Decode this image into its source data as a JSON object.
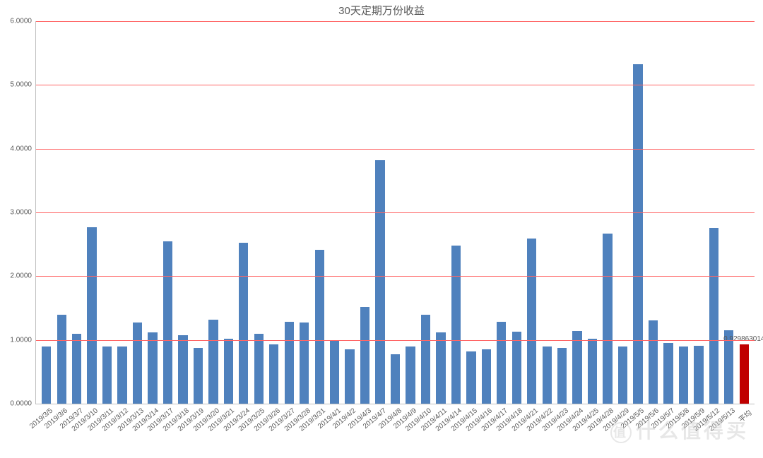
{
  "chart": {
    "type": "bar",
    "title": "30天定期万份收益",
    "title_fontsize": 15,
    "title_color": "#595959",
    "background_color": "#ffffff",
    "plot_background": "#ffffff",
    "grid_color": "#ff6666",
    "axis_color": "#bfbfbf",
    "tick_font_color": "#595959",
    "tick_fontsize": 10,
    "xlabel_fontsize": 10,
    "ylim": [
      0,
      6
    ],
    "yticks": [
      0,
      1,
      2,
      3,
      4,
      5,
      6
    ],
    "ytick_format": "0.0000",
    "bar_width_ratio": 0.62,
    "default_bar_color": "#4f81bd",
    "highlight_bar_color": "#c00000",
    "categories": [
      "2019/3/5",
      "2019/3/6",
      "2019/3/7",
      "2019/3/10",
      "2019/3/11",
      "2019/3/12",
      "2019/3/13",
      "2019/3/14",
      "2019/3/17",
      "2019/3/18",
      "2019/3/19",
      "2019/3/20",
      "2019/3/21",
      "2019/3/24",
      "2019/3/25",
      "2019/3/26",
      "2019/3/27",
      "2019/3/28",
      "2019/3/31",
      "2019/4/1",
      "2019/4/2",
      "2019/4/3",
      "2019/4/7",
      "2019/4/8",
      "2019/4/9",
      "2019/4/10",
      "2019/4/11",
      "2019/4/14",
      "2019/4/15",
      "2019/4/16",
      "2019/4/17",
      "2019/4/18",
      "2019/4/21",
      "2019/4/22",
      "2019/4/23",
      "2019/4/24",
      "2019/4/25",
      "2019/4/28",
      "2019/4/29",
      "2019/5/5",
      "2019/5/6",
      "2019/5/7",
      "2019/5/8",
      "2019/5/9",
      "2019/5/12",
      "2019/5/13",
      "平均"
    ],
    "values": [
      0.9,
      1.4,
      1.1,
      2.77,
      0.9,
      0.9,
      1.27,
      1.12,
      2.55,
      1.07,
      0.87,
      1.32,
      1.02,
      2.52,
      1.1,
      0.93,
      1.28,
      1.27,
      2.41,
      0.98,
      0.85,
      1.52,
      3.82,
      0.77,
      0.9,
      1.4,
      1.12,
      2.48,
      0.82,
      0.85,
      1.28,
      1.13,
      2.59,
      0.9,
      0.88,
      1.14,
      1.02,
      2.67,
      0.9,
      5.32,
      1.31,
      0.95,
      0.9,
      0.91,
      2.76,
      1.15,
      0.929863014
    ],
    "bar_colors": [
      "#4f81bd",
      "#4f81bd",
      "#4f81bd",
      "#4f81bd",
      "#4f81bd",
      "#4f81bd",
      "#4f81bd",
      "#4f81bd",
      "#4f81bd",
      "#4f81bd",
      "#4f81bd",
      "#4f81bd",
      "#4f81bd",
      "#4f81bd",
      "#4f81bd",
      "#4f81bd",
      "#4f81bd",
      "#4f81bd",
      "#4f81bd",
      "#4f81bd",
      "#4f81bd",
      "#4f81bd",
      "#4f81bd",
      "#4f81bd",
      "#4f81bd",
      "#4f81bd",
      "#4f81bd",
      "#4f81bd",
      "#4f81bd",
      "#4f81bd",
      "#4f81bd",
      "#4f81bd",
      "#4f81bd",
      "#4f81bd",
      "#4f81bd",
      "#4f81bd",
      "#4f81bd",
      "#4f81bd",
      "#4f81bd",
      "#4f81bd",
      "#4f81bd",
      "#4f81bd",
      "#4f81bd",
      "#4f81bd",
      "#4f81bd",
      "#4f81bd",
      "#c00000"
    ],
    "data_labels": {
      "46": "0.929863014"
    }
  },
  "watermark": {
    "circle_text": "值",
    "text": "什么值得买",
    "color": "#d0d0d0"
  }
}
